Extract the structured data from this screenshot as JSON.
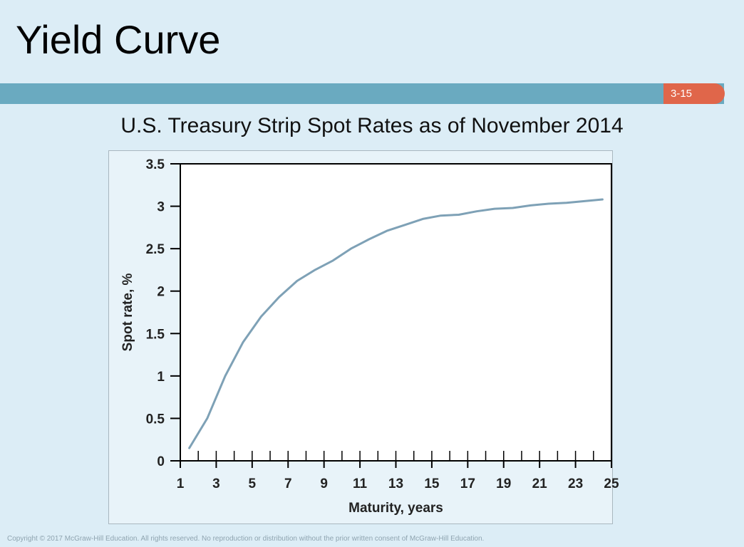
{
  "slide": {
    "title": "Yield Curve",
    "number": "3-15",
    "copyright": "Copyright © 2017 McGraw-Hill Education. All rights reserved. No reproduction or distribution without the prior written consent of McGraw-Hill Education."
  },
  "chart_data": {
    "type": "line",
    "title": "U.S. Treasury Strip Spot Rates as of November 2014",
    "xlabel": "Maturity, years",
    "ylabel": "Spot rate, %",
    "xlim": [
      1,
      25
    ],
    "ylim": [
      0,
      3.5
    ],
    "x_ticks": [
      1,
      3,
      5,
      7,
      9,
      11,
      13,
      15,
      17,
      19,
      21,
      23,
      25
    ],
    "y_ticks": [
      0,
      0.5,
      1,
      1.5,
      2,
      2.5,
      3,
      3.5
    ],
    "y_tick_labels": [
      "0",
      "0.5",
      "1",
      "1.5",
      "2",
      "2.5",
      "3",
      "3.5"
    ],
    "grid": false,
    "line_color": "#7ea1b6",
    "series": [
      {
        "x": [
          1.5,
          2.5,
          3.5,
          4.5,
          5.5,
          6.5,
          7.5,
          8.5,
          9.5,
          10.5,
          11.5,
          12.5,
          13.5,
          14.5,
          15.5,
          16.5,
          17.5,
          18.5,
          19.5,
          20.5,
          21.5,
          22.5,
          23.5,
          24.5
        ],
        "y": [
          0.15,
          0.5,
          1.0,
          1.4,
          1.7,
          1.93,
          2.12,
          2.25,
          2.36,
          2.5,
          2.61,
          2.71,
          2.78,
          2.85,
          2.89,
          2.9,
          2.94,
          2.97,
          2.98,
          3.01,
          3.03,
          3.04,
          3.06,
          3.08
        ]
      }
    ]
  }
}
